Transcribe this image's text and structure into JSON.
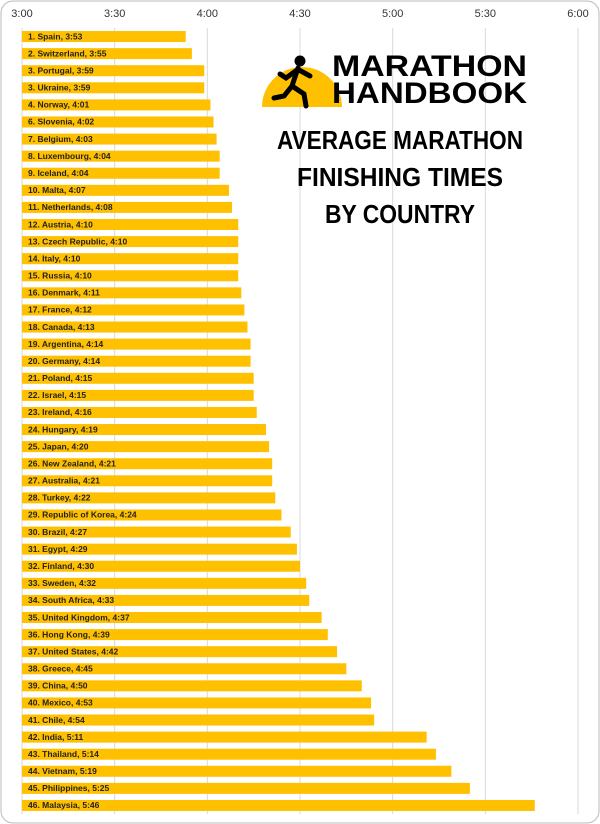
{
  "chart_data": {
    "type": "bar",
    "orientation": "horizontal",
    "logo": [
      "MARATHON",
      "HANDBOOK"
    ],
    "title": [
      "AVERAGE MARATHON",
      "FINISHING TIMES",
      "BY COUNTRY"
    ],
    "color": "#ffc000",
    "grid": true,
    "xlim": [
      180,
      360
    ],
    "xticks": [
      {
        "value": 180,
        "label": "3:00"
      },
      {
        "value": 210,
        "label": "3:30"
      },
      {
        "value": 240,
        "label": "4:00"
      },
      {
        "value": 270,
        "label": "4:30"
      },
      {
        "value": 300,
        "label": "5:00"
      },
      {
        "value": 330,
        "label": "5:30"
      },
      {
        "value": 360,
        "label": "6:00"
      }
    ],
    "categories": [
      "1. Spain, 3:53",
      "2. Switzerland, 3:55",
      "3. Portugal, 3:59",
      "3. Ukraine, 3:59",
      "4. Norway, 4:01",
      "6. Slovenia, 4:02",
      "7. Belgium, 4:03",
      "8. Luxembourg, 4:04",
      "9. Iceland, 4:04",
      "10. Malta, 4:07",
      "11. Netherlands, 4:08",
      "12. Austria, 4:10",
      "13. Czech Republic, 4:10",
      "14. Italy, 4:10",
      "15. Russia, 4:10",
      "16. Denmark, 4:11",
      "17. France, 4:12",
      "18. Canada, 4:13",
      "19. Argentina, 4:14",
      "20. Germany, 4:14",
      "21. Poland, 4:15",
      "22. Israel, 4:15",
      "23. Ireland, 4:16",
      "24. Hungary, 4:19",
      "25. Japan, 4:20",
      "26. New Zealand, 4:21",
      "27. Australia, 4:21",
      "28. Turkey, 4:22",
      "29. Republic of Korea, 4:24",
      "30. Brazil, 4:27",
      "31. Egypt, 4:29",
      "32. Finland, 4:30",
      "33. Sweden, 4:32",
      "34. South Africa, 4:33",
      "35. United Kingdom, 4:37",
      "36. Hong Kong, 4:39",
      "37. United States, 4:42",
      "38. Greece, 4:45",
      "39. China, 4:50",
      "40. Mexico, 4:53",
      "41. Chile, 4:54",
      "42. India, 5:11",
      "43. Thailand, 5:14",
      "44. Vietnam, 5:19",
      "45. Philippines, 5:25",
      "46. Malaysia, 5:46"
    ],
    "values": [
      233,
      235,
      239,
      239,
      241,
      242,
      243,
      244,
      244,
      247,
      248,
      250,
      250,
      250,
      250,
      251,
      252,
      253,
      254,
      254,
      255,
      255,
      256,
      259,
      260,
      261,
      261,
      262,
      264,
      267,
      269,
      270,
      272,
      273,
      277,
      279,
      282,
      285,
      290,
      293,
      294,
      311,
      314,
      319,
      325,
      346
    ]
  }
}
